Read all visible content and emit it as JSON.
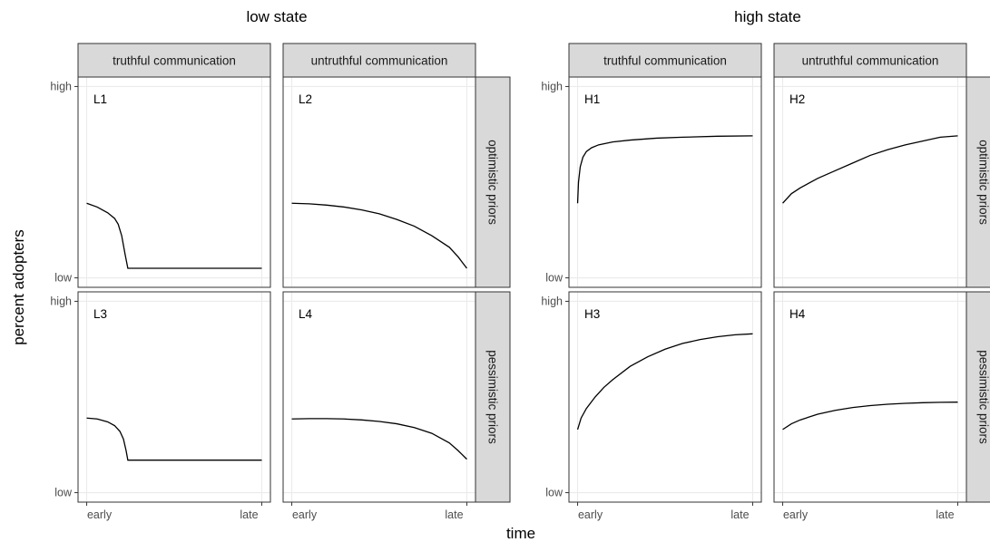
{
  "chart_data": {
    "type": "line",
    "group_titles": [
      "low state",
      "high state"
    ],
    "col_strips": [
      "truthful communication",
      "untruthful communication"
    ],
    "row_strips": [
      "optimistic priors",
      "pessimistic priors"
    ],
    "xlabel": "time",
    "ylabel": "percent adopters",
    "x_ticks": [
      "early",
      "late"
    ],
    "y_ticks": [
      "low",
      "high"
    ],
    "xlim": [
      0,
      1
    ],
    "ylim": [
      0,
      1
    ],
    "grid": true,
    "panels": [
      {
        "label": "L1",
        "group": 0,
        "col": 0,
        "row": 0,
        "x": [
          0,
          0.06,
          0.12,
          0.16,
          0.18,
          0.2,
          0.22,
          0.235,
          1
        ],
        "y": [
          0.39,
          0.37,
          0.34,
          0.31,
          0.28,
          0.22,
          0.12,
          0.05,
          0.05
        ]
      },
      {
        "label": "L2",
        "group": 0,
        "col": 1,
        "row": 0,
        "x": [
          0,
          0.1,
          0.2,
          0.3,
          0.4,
          0.5,
          0.6,
          0.7,
          0.8,
          0.9,
          0.95,
          1
        ],
        "y": [
          0.39,
          0.387,
          0.38,
          0.37,
          0.355,
          0.335,
          0.305,
          0.27,
          0.22,
          0.16,
          0.11,
          0.05
        ]
      },
      {
        "label": "H1",
        "group": 1,
        "col": 0,
        "row": 0,
        "x": [
          0,
          0.005,
          0.015,
          0.03,
          0.05,
          0.08,
          0.12,
          0.2,
          0.3,
          0.45,
          0.6,
          0.8,
          1
        ],
        "y": [
          0.39,
          0.5,
          0.58,
          0.63,
          0.66,
          0.68,
          0.695,
          0.71,
          0.72,
          0.73,
          0.735,
          0.74,
          0.742
        ]
      },
      {
        "label": "H2",
        "group": 1,
        "col": 1,
        "row": 0,
        "x": [
          0,
          0.05,
          0.1,
          0.2,
          0.3,
          0.4,
          0.5,
          0.6,
          0.7,
          0.8,
          0.9,
          1
        ],
        "y": [
          0.39,
          0.44,
          0.47,
          0.52,
          0.56,
          0.6,
          0.64,
          0.67,
          0.695,
          0.715,
          0.735,
          0.742
        ]
      },
      {
        "label": "L3",
        "group": 0,
        "col": 0,
        "row": 1,
        "x": [
          0,
          0.06,
          0.12,
          0.16,
          0.19,
          0.21,
          0.225,
          0.235,
          1
        ],
        "y": [
          0.39,
          0.385,
          0.37,
          0.35,
          0.32,
          0.28,
          0.22,
          0.17,
          0.17
        ]
      },
      {
        "label": "L4",
        "group": 0,
        "col": 1,
        "row": 1,
        "x": [
          0,
          0.1,
          0.2,
          0.3,
          0.4,
          0.5,
          0.6,
          0.7,
          0.8,
          0.9,
          0.95,
          1
        ],
        "y": [
          0.385,
          0.387,
          0.387,
          0.385,
          0.38,
          0.372,
          0.36,
          0.34,
          0.31,
          0.26,
          0.22,
          0.175
        ]
      },
      {
        "label": "H3",
        "group": 1,
        "col": 0,
        "row": 1,
        "x": [
          0,
          0.02,
          0.05,
          0.1,
          0.15,
          0.2,
          0.3,
          0.4,
          0.5,
          0.6,
          0.7,
          0.8,
          0.9,
          1
        ],
        "y": [
          0.33,
          0.39,
          0.44,
          0.5,
          0.55,
          0.59,
          0.66,
          0.71,
          0.75,
          0.78,
          0.8,
          0.815,
          0.825,
          0.83
        ]
      },
      {
        "label": "H4",
        "group": 1,
        "col": 1,
        "row": 1,
        "x": [
          0,
          0.05,
          0.1,
          0.2,
          0.3,
          0.4,
          0.5,
          0.6,
          0.7,
          0.8,
          0.9,
          1
        ],
        "y": [
          0.33,
          0.36,
          0.38,
          0.41,
          0.43,
          0.445,
          0.455,
          0.462,
          0.467,
          0.47,
          0.472,
          0.473
        ]
      }
    ]
  }
}
